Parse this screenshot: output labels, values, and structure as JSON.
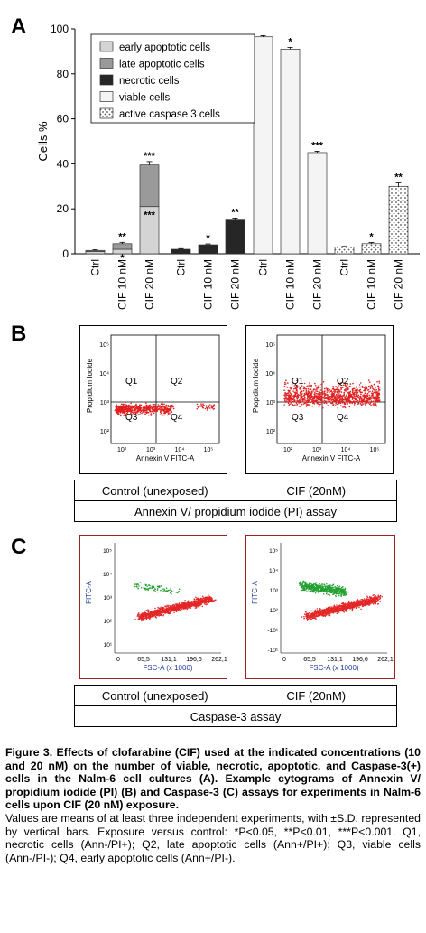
{
  "panels": {
    "a": "A",
    "b": "B",
    "c": "C"
  },
  "chart_data": {
    "type": "bar",
    "ylabel": "Cells %",
    "ylim": [
      0,
      100
    ],
    "yticks": [
      0,
      20,
      40,
      60,
      80,
      100
    ],
    "groups": [
      {
        "name": "apoptotic",
        "categories": [
          "Ctrl",
          "CIF 10 nM",
          "CIF 20 nM"
        ],
        "stack": [
          {
            "series": "early apoptotic cells",
            "values": [
              1,
              2,
              21
            ],
            "annotations": [
              "",
              "*",
              "***"
            ]
          },
          {
            "series": "late apoptotic cells",
            "values": [
              0.5,
              2.5,
              18.5
            ],
            "annotations": [
              "",
              "**",
              "***"
            ]
          }
        ],
        "errors": [
          0.3,
          0.6,
          1.5
        ]
      },
      {
        "name": "necrotic",
        "categories": [
          "Ctrl",
          "CIF 10 nM",
          "CIF 20 nM"
        ],
        "stack": [
          {
            "series": "necrotic cells",
            "values": [
              2,
              4,
              15
            ],
            "annotations": [
              "",
              "*",
              "**"
            ]
          }
        ],
        "errors": [
          0.3,
          0.4,
          0.9
        ]
      },
      {
        "name": "viable",
        "categories": [
          "Ctrl",
          "CIF 10 nM",
          "CIF 20 nM"
        ],
        "stack": [
          {
            "series": "viable cells",
            "values": [
              96.5,
              91,
              45
            ],
            "annotations": [
              "",
              "*",
              "***"
            ]
          }
        ],
        "errors": [
          0.5,
          0.8,
          0.6
        ]
      },
      {
        "name": "caspase",
        "categories": [
          "Ctrl",
          "CIF 10 nM",
          "CIF 20 nM"
        ],
        "stack": [
          {
            "series": "active caspase 3 cells",
            "values": [
              3,
              4.5,
              30
            ],
            "annotations": [
              "",
              "*",
              "**"
            ]
          }
        ],
        "errors": [
          0.3,
          0.5,
          1.5
        ]
      }
    ],
    "legend": [
      "early apoptotic cells",
      "late apoptotic cells",
      "necrotic cells",
      "viable cells",
      "active caspase 3 cells"
    ],
    "legend_position": "top-left",
    "colors": {
      "early apoptotic cells": "#d4d4d4",
      "late apoptotic cells": "#9a9a9a",
      "necrotic cells": "#262626",
      "viable cells": "#f4f4f4",
      "active caspase 3 cells": "#ffffff"
    }
  },
  "cytoB": {
    "ylabel": "Propidium Iodide",
    "xlabel": "Annexin V FITC-A",
    "quadrants": [
      "Q1",
      "Q2",
      "Q3",
      "Q4"
    ],
    "yticks": [
      "10⁵",
      "10⁴",
      "10³",
      "10²"
    ],
    "xticks": [
      "10²",
      "10³",
      "10⁴",
      "10⁵"
    ],
    "table": {
      "left": "Control (unexposed)",
      "right": "CIF (20nM)",
      "assay": "Annexin V/ propidium iodide (PI) assay"
    }
  },
  "cytoC": {
    "ylabel": "FITC-A",
    "xlabel": "FSC-A (x 1000)",
    "yticks": [
      "10⁵",
      "10⁴",
      "10³",
      "10²",
      "10¹"
    ],
    "yticks_right": [
      "10⁵",
      "10⁴",
      "10³",
      "10²",
      "-10¹",
      "-10¹"
    ],
    "xticks": [
      "0",
      "65,5",
      "131,1",
      "196,6",
      "262,1"
    ],
    "table": {
      "left": "Control (unexposed)",
      "right": "CIF (20nM)",
      "assay": "Caspase-3 assay"
    }
  },
  "caption": {
    "bold": "Figure 3. Effects of clofarabine (CIF) used at the indicated concentrations (10 and 20 nM) on the number of viable, necrotic, apoptotic, and Caspase-3(+) cells in the Nalm-6 cell cultures (A). Example cytograms of Annexin V/ propidium iodide (PI) (B) and Caspase-3 (C) assays for experiments in Nalm-6 cells upon CIF (20 nM) exposure.",
    "normal": "Values are means of at least three independent experiments, with ±S.D. represented by vertical bars. Exposure versus control: *P<0.05, **P<0.01, ***P<0.001. Q1, necrotic cells (Ann-/PI+); Q2, late apoptotic cells (Ann+/PI+); Q3, viable cells (Ann-/PI-); Q4, early apoptotic cells (Ann+/PI-)."
  }
}
